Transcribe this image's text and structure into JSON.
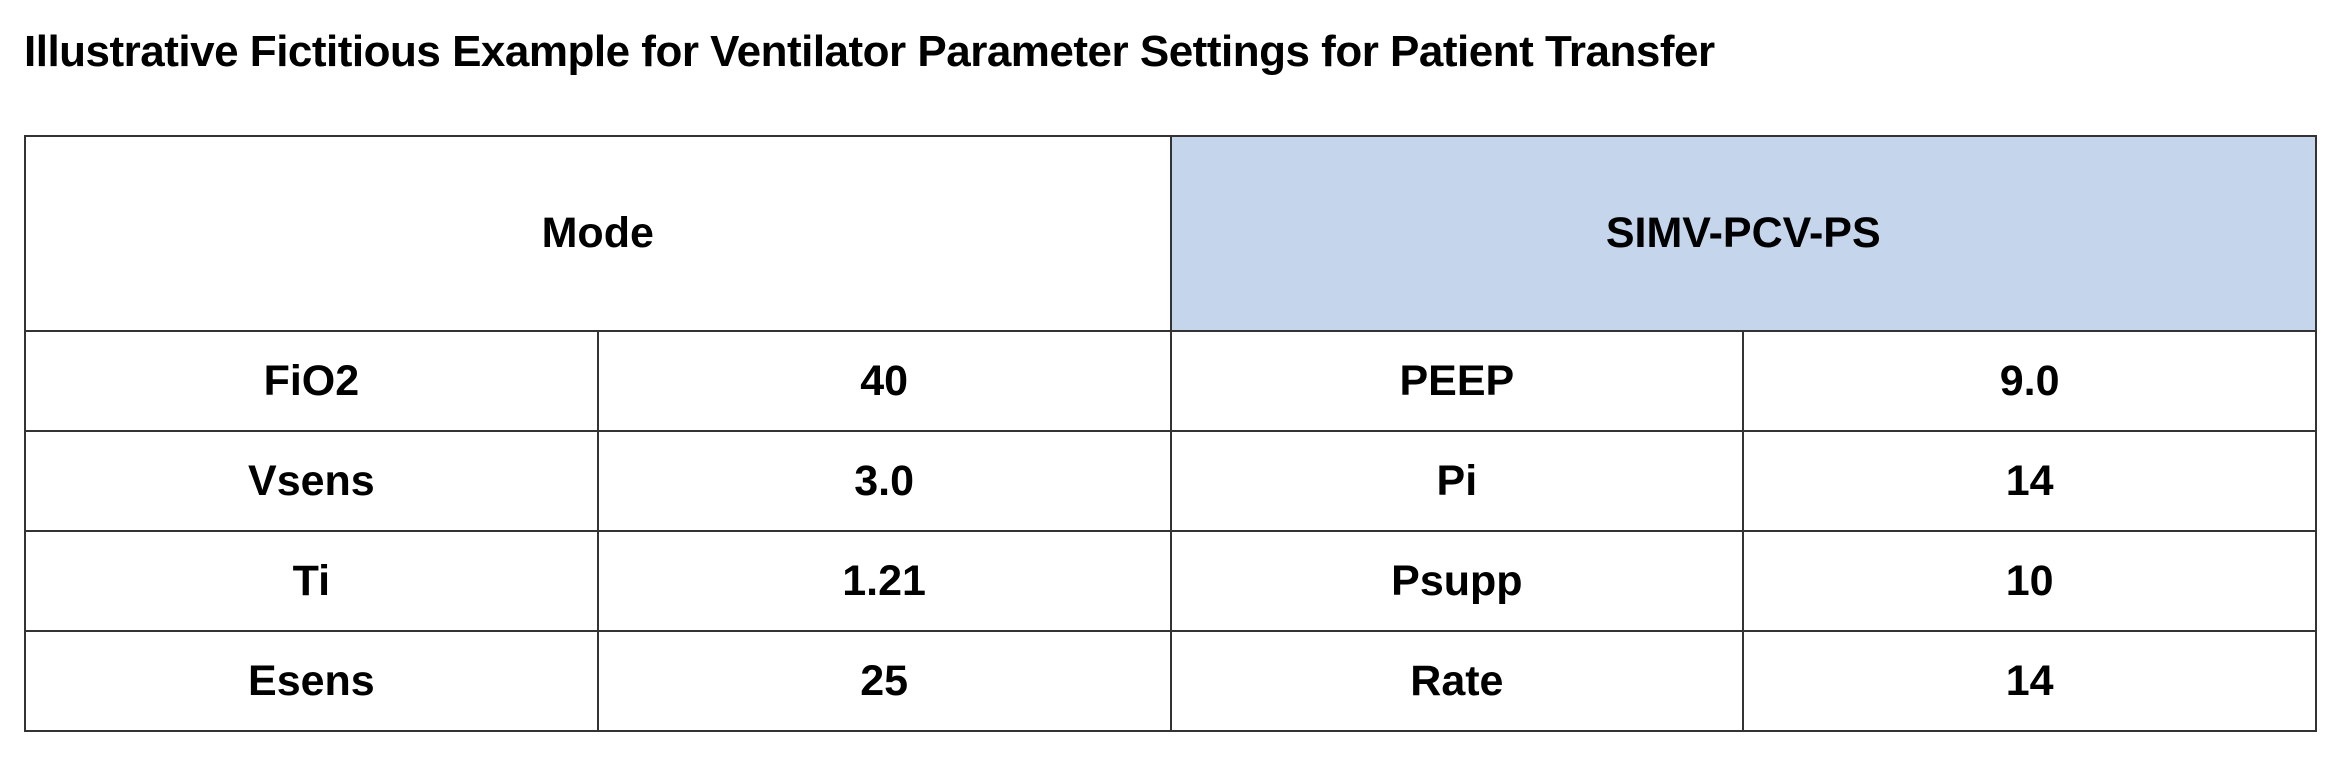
{
  "title": "Illustrative Fictitious Example for Ventilator Parameter Settings for Patient Transfer",
  "table": {
    "header": [
      "Mode",
      "SIMV-PCV-PS"
    ],
    "rows": [
      [
        "FiO2",
        "40",
        "PEEP",
        "9.0"
      ],
      [
        "Vsens",
        "3.0",
        "Pi",
        "14"
      ],
      [
        "Ti",
        "1.21",
        "Psupp",
        "10"
      ],
      [
        "Esens",
        "25",
        "Rate",
        "14"
      ]
    ]
  }
}
